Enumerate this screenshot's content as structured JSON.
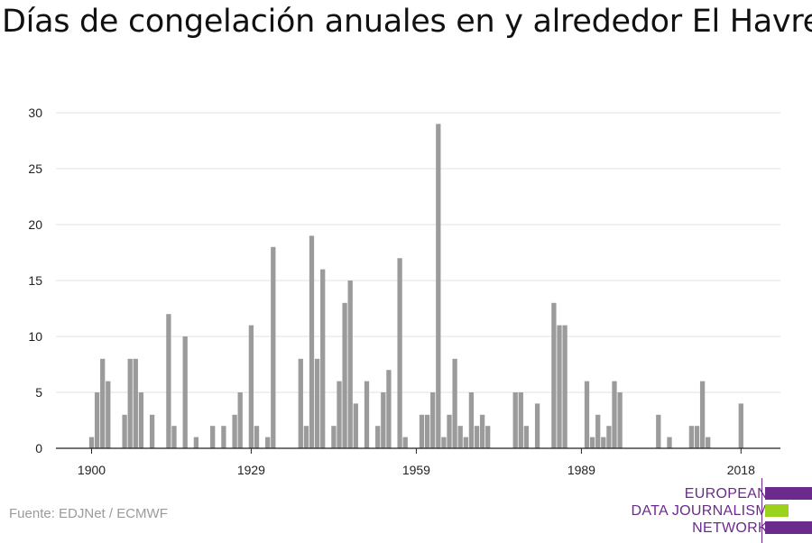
{
  "title": "Días de congelación anuales en y alrededor El Havre",
  "source": "Fuente: EDJNet / ECMWF",
  "logo": {
    "lines": [
      "EUROPEAN",
      "DATA JOURNALISM",
      "NETWORK"
    ],
    "colors": {
      "purple": "#6b2b8c",
      "green": "#9bd21e"
    }
  },
  "colors": {
    "bar": "#9b9b9b",
    "grid": "#e2e2e2",
    "axis": "#222222"
  },
  "chart_data": {
    "type": "bar",
    "title": "Días de congelación anuales en y alrededor El Havre",
    "xlabel": "",
    "ylabel": "",
    "ylim": [
      0,
      30
    ],
    "yticks": [
      0,
      5,
      10,
      15,
      20,
      25,
      30
    ],
    "xticks": [
      1900,
      1929,
      1959,
      1989,
      2018
    ],
    "grid": true,
    "x": [
      1900,
      1901,
      1902,
      1903,
      1904,
      1905,
      1906,
      1907,
      1908,
      1909,
      1910,
      1911,
      1912,
      1913,
      1914,
      1915,
      1916,
      1917,
      1918,
      1919,
      1920,
      1921,
      1922,
      1923,
      1924,
      1925,
      1926,
      1927,
      1928,
      1929,
      1930,
      1931,
      1932,
      1933,
      1934,
      1935,
      1936,
      1937,
      1938,
      1939,
      1940,
      1941,
      1942,
      1943,
      1944,
      1945,
      1946,
      1947,
      1948,
      1949,
      1950,
      1951,
      1952,
      1953,
      1954,
      1955,
      1956,
      1957,
      1958,
      1959,
      1960,
      1961,
      1962,
      1963,
      1964,
      1965,
      1966,
      1967,
      1968,
      1969,
      1970,
      1971,
      1972,
      1973,
      1974,
      1975,
      1976,
      1977,
      1978,
      1979,
      1980,
      1981,
      1982,
      1983,
      1984,
      1985,
      1986,
      1987,
      1988,
      1989,
      1990,
      1991,
      1992,
      1993,
      1994,
      1995,
      1996,
      1997,
      1998,
      1999,
      2000,
      2001,
      2002,
      2003,
      2004,
      2005,
      2006,
      2007,
      2008,
      2009,
      2010,
      2011,
      2012,
      2013,
      2014,
      2015,
      2016,
      2017,
      2018
    ],
    "values": [
      1,
      5,
      8,
      6,
      0,
      0,
      3,
      8,
      8,
      5,
      0,
      3,
      0,
      0,
      12,
      2,
      0,
      10,
      0,
      1,
      0,
      0,
      2,
      0,
      2,
      0,
      3,
      5,
      0,
      11,
      2,
      0,
      1,
      18,
      0,
      0,
      0,
      0,
      8,
      2,
      19,
      8,
      16,
      0,
      2,
      6,
      13,
      15,
      4,
      0,
      6,
      0,
      2,
      5,
      7,
      0,
      17,
      1,
      0,
      0,
      3,
      3,
      5,
      29,
      1,
      3,
      8,
      2,
      1,
      5,
      2,
      3,
      2,
      0,
      0,
      0,
      0,
      5,
      5,
      2,
      0,
      4,
      0,
      0,
      13,
      11,
      11,
      0,
      0,
      0,
      6,
      1,
      3,
      1,
      2,
      6,
      5,
      0,
      0,
      0,
      0,
      0,
      0,
      3,
      0,
      1,
      0,
      0,
      0,
      2,
      2,
      6,
      1,
      0,
      0,
      0,
      0,
      0,
      4
    ]
  }
}
